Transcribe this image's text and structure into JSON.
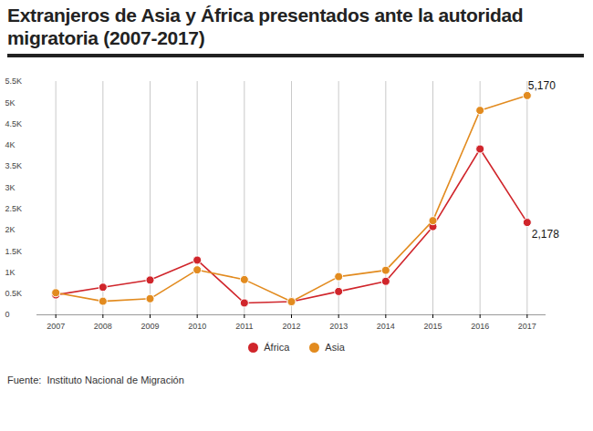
{
  "chart_data": {
    "type": "line",
    "title": "Extranjeros de Asia y África presentados ante la autoridad migratoria (2007-2017)",
    "source": "Fuente:  Instituto Nacional de Migración",
    "x": [
      2007,
      2008,
      2009,
      2010,
      2011,
      2012,
      2013,
      2014,
      2015,
      2016,
      2017
    ],
    "series": [
      {
        "name": "África",
        "color": "#d0252b",
        "marker": "circle",
        "values": [
          470,
          650,
          820,
          1290,
          280,
          310,
          550,
          790,
          2080,
          3910,
          2178
        ]
      },
      {
        "name": "Asia",
        "color": "#e28b1f",
        "marker": "circle",
        "values": [
          520,
          320,
          380,
          1060,
          830,
          310,
          900,
          1050,
          2220,
          4820,
          5170
        ]
      }
    ],
    "xlim": [
      2006.6,
      2017.4
    ],
    "xticks": [
      2007,
      2008,
      2009,
      2010,
      2011,
      2012,
      2013,
      2014,
      2015,
      2016,
      2017
    ],
    "ylim": [
      0,
      5500
    ],
    "yticks": [
      0,
      {
        "value": 500,
        "label": "0.5K"
      },
      {
        "value": 1000,
        "label": "1K"
      },
      {
        "value": 1500,
        "label": "1.5K"
      },
      {
        "value": 2000,
        "label": "2K"
      },
      {
        "value": 2500,
        "label": "2.5K"
      },
      {
        "value": 3000,
        "label": "3K"
      },
      {
        "value": 3500,
        "label": "3.5K"
      },
      {
        "value": 4000,
        "label": "4K"
      },
      {
        "value": 4500,
        "label": "4.5K"
      },
      {
        "value": 5000,
        "label": "5K"
      },
      {
        "value": 5500,
        "label": "5.5K"
      }
    ],
    "annotations": [
      {
        "x": 2017,
        "y": 5170,
        "text": "5,170"
      },
      {
        "x": 2017,
        "y": 2178,
        "text": "2,178"
      }
    ],
    "grid": true,
    "legend": "bottom"
  }
}
